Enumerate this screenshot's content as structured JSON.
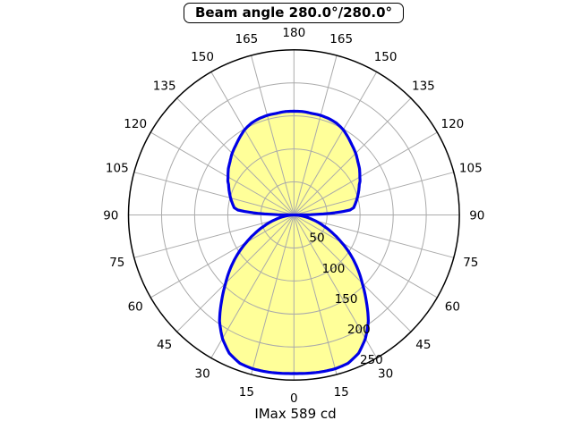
{
  "title": "Beam angle 280.0°/280.0°",
  "footer": "IMax 589 cd",
  "chart_data": {
    "type": "polar",
    "title": "Beam angle 280.0°/280.0°",
    "annotation": "IMax 589 cd",
    "imax_cd": 589,
    "beam_angle": "280.0°/280.0°",
    "angle_ticks_deg": [
      0,
      15,
      30,
      45,
      60,
      75,
      90,
      105,
      120,
      135,
      150,
      165,
      180
    ],
    "angle_labels_mirrored_both_sides": true,
    "angle_zero_position": "bottom",
    "r_ticks": [
      50,
      100,
      150,
      200,
      250
    ],
    "r_max": 250,
    "r_label_angle_deg": 22.5,
    "grid": true,
    "grid_step_deg": 15,
    "colors": {
      "curve": "#0000e6",
      "fill": "#ffff99",
      "grid": "#aaaaaa",
      "axis": "#000000",
      "text": "#000000",
      "background": "#ffffff"
    },
    "series": [
      {
        "name": "luminous-intensity-profile",
        "mirror_symmetric": true,
        "samples_deg_value": [
          [
            0,
            240
          ],
          [
            5,
            240.5
          ],
          [
            10,
            241
          ],
          [
            15,
            241
          ],
          [
            20,
            239
          ],
          [
            25,
            231
          ],
          [
            30,
            216
          ],
          [
            35,
            196
          ],
          [
            40,
            170
          ],
          [
            45,
            146
          ],
          [
            50,
            125
          ],
          [
            55,
            104
          ],
          [
            60,
            83
          ],
          [
            65,
            64
          ],
          [
            70,
            47
          ],
          [
            75,
            32
          ],
          [
            80,
            19
          ],
          [
            84,
            10
          ],
          [
            87,
            4
          ],
          [
            90,
            0
          ],
          [
            91,
            25
          ],
          [
            91.5,
            34
          ],
          [
            92.5,
            55
          ],
          [
            94,
            75
          ],
          [
            95,
            85
          ],
          [
            97,
            91
          ],
          [
            100,
            94
          ],
          [
            105,
            99
          ],
          [
            110,
            104
          ],
          [
            115,
            109
          ],
          [
            117,
            112
          ],
          [
            120,
            115
          ],
          [
            125,
            121
          ],
          [
            130,
            126
          ],
          [
            135,
            132
          ],
          [
            140,
            137
          ],
          [
            145,
            143
          ],
          [
            150,
            149
          ],
          [
            155,
            153
          ],
          [
            160,
            155
          ],
          [
            165,
            156
          ],
          [
            170,
            156
          ],
          [
            175,
            157
          ],
          [
            180,
            157
          ]
        ]
      }
    ]
  }
}
